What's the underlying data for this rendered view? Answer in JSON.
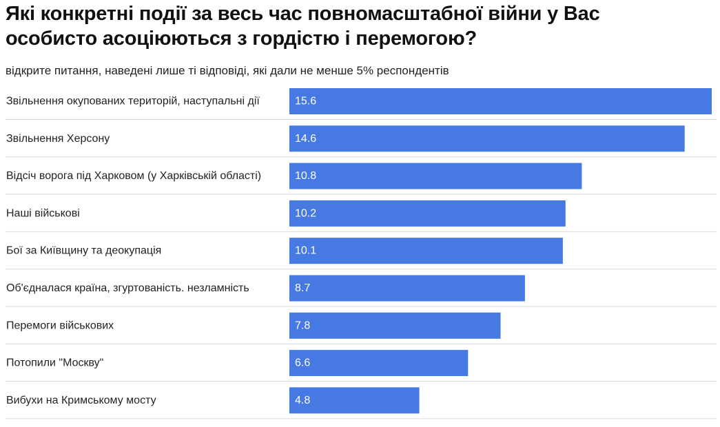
{
  "chart_data": {
    "type": "bar",
    "orientation": "horizontal",
    "title": "Які конкретні події за весь час повномасштабної війни у Вас особисто асоціюються з гордістю і перемогою?",
    "subtitle": "відкрите питання, наведені лише ті відповіді, які дали не менше 5% респондентів",
    "categories": [
      "Звільнення окупованих територій, наступальні дії",
      "Звільнення Херсону",
      "Відсіч ворога під Харковом (у Харківській області)",
      "Наші військові",
      "Бої за Київщину та деокупація",
      "Об'єдналася країна, згуртованість. незламність",
      "Перемоги військових",
      "Потопили \"Москву\"",
      "Вибухи на Кримському мосту"
    ],
    "values": [
      15.6,
      14.6,
      10.8,
      10.2,
      10.1,
      8.7,
      7.8,
      6.6,
      4.8
    ],
    "value_labels": [
      "15.6",
      "14.6",
      "10.8",
      "10.2",
      "10.1",
      "8.7",
      "7.8",
      "6.6",
      "4.8"
    ],
    "xlim": [
      0,
      15.6
    ],
    "grid": false,
    "legend": "none",
    "colors": {
      "bar": "#4679e1",
      "value_text": "#ffffff",
      "separator": "#d9d9d9"
    }
  }
}
